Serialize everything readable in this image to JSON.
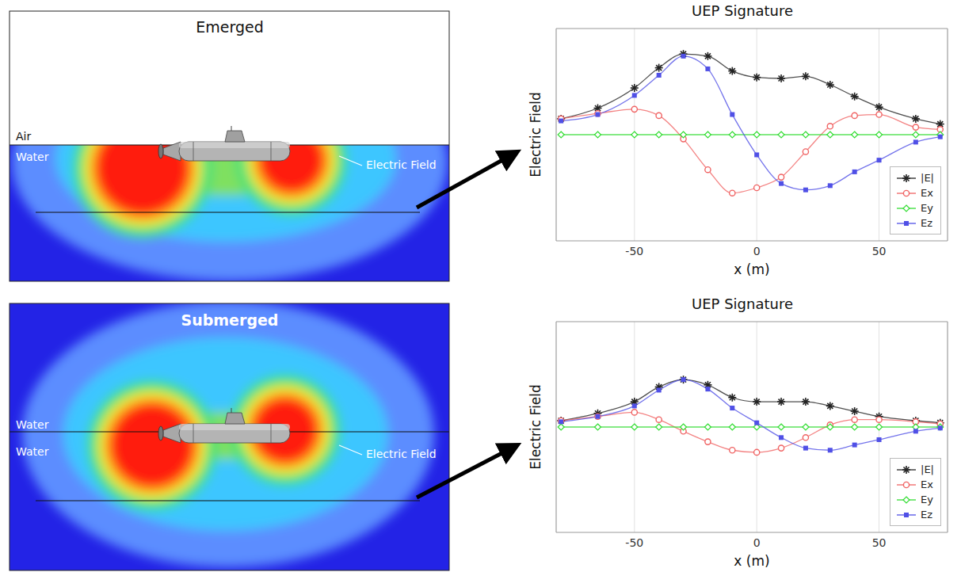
{
  "chart_data": [
    {
      "type": "line",
      "title": "UEP Signature",
      "x_label": "x (m)",
      "y_label": "Electric Field",
      "x": [
        -80,
        -65,
        -50,
        -40,
        -30,
        -20,
        -10,
        0,
        10,
        20,
        30,
        40,
        50,
        65,
        75
      ],
      "series": [
        {
          "name": "|E|",
          "color": "#222222",
          "marker": "star",
          "values": [
            0.15,
            0.25,
            0.44,
            0.63,
            0.76,
            0.74,
            0.6,
            0.54,
            0.53,
            0.55,
            0.47,
            0.36,
            0.26,
            0.15,
            0.1
          ]
        },
        {
          "name": "Ex",
          "color": "#f06464",
          "marker": "circle",
          "values": [
            0.15,
            0.2,
            0.24,
            0.18,
            -0.04,
            -0.33,
            -0.55,
            -0.5,
            -0.4,
            -0.16,
            0.08,
            0.18,
            0.19,
            0.07,
            0.05
          ]
        },
        {
          "name": "Ey",
          "color": "#33dd33",
          "marker": "diamond",
          "values": [
            0,
            0,
            0,
            0,
            0,
            0,
            0,
            0,
            0,
            0,
            0,
            0,
            0,
            0,
            0
          ]
        },
        {
          "name": "Ez",
          "color": "#5050e6",
          "marker": "square",
          "values": [
            0.13,
            0.19,
            0.37,
            0.56,
            0.74,
            0.62,
            0.19,
            -0.19,
            -0.46,
            -0.52,
            -0.48,
            -0.35,
            -0.24,
            -0.07,
            -0.02
          ]
        }
      ],
      "xlim": [
        -82,
        78
      ],
      "xticks": [
        -50,
        0,
        50
      ],
      "ylim": [
        -1,
        1
      ],
      "grid": true,
      "legend": "lower right",
      "tick_labels": "x"
    },
    {
      "type": "line",
      "title": "UEP Signature",
      "x_label": "x (m)",
      "y_label": "Electric Field",
      "x": [
        -80,
        -65,
        -50,
        -40,
        -30,
        -20,
        -10,
        0,
        10,
        20,
        30,
        40,
        50,
        65,
        75
      ],
      "series": [
        {
          "name": "|E|",
          "color": "#222222",
          "marker": "star",
          "values": [
            0.06,
            0.13,
            0.24,
            0.38,
            0.45,
            0.4,
            0.28,
            0.24,
            0.24,
            0.24,
            0.2,
            0.15,
            0.1,
            0.06,
            0.04
          ]
        },
        {
          "name": "Ex",
          "color": "#f06464",
          "marker": "circle",
          "values": [
            0.06,
            0.1,
            0.14,
            0.07,
            -0.04,
            -0.14,
            -0.22,
            -0.24,
            -0.2,
            -0.1,
            0.02,
            0.07,
            0.07,
            0.05,
            0.03
          ]
        },
        {
          "name": "Ey",
          "color": "#33dd33",
          "marker": "diamond",
          "values": [
            0,
            0,
            0,
            0,
            0,
            0,
            0,
            0,
            0,
            0,
            0,
            0,
            0,
            0,
            0
          ]
        },
        {
          "name": "Ez",
          "color": "#5050e6",
          "marker": "square",
          "values": [
            0.05,
            0.1,
            0.2,
            0.35,
            0.45,
            0.36,
            0.18,
            0.04,
            -0.1,
            -0.2,
            -0.22,
            -0.17,
            -0.12,
            -0.04,
            -0.01
          ]
        }
      ],
      "xlim": [
        -82,
        78
      ],
      "xticks": [
        -50,
        0,
        50
      ],
      "ylim": [
        -1,
        1
      ],
      "grid": true,
      "legend": "lower right",
      "tick_labels": "x"
    }
  ],
  "diagrams": [
    {
      "title": "Emerged",
      "labels": [
        "Air",
        "Water"
      ],
      "annotation": "Electric Field"
    },
    {
      "title": "Submerged",
      "labels": [
        "Water",
        "Water"
      ],
      "annotation": "Electric Field"
    }
  ]
}
